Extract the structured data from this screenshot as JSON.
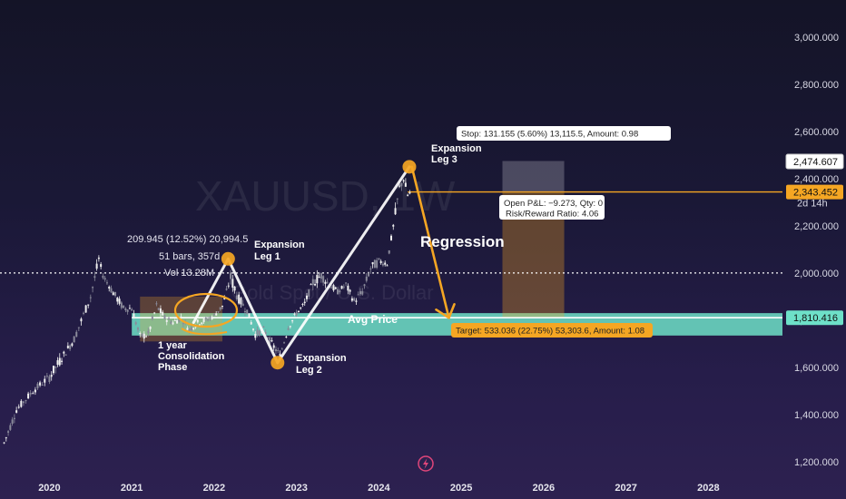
{
  "chart_data": {
    "type": "candlestick",
    "symbol_watermark": "XAUUSD, 1W",
    "watermark_sub": "Gold Spot / U.S. Dollar",
    "y_axis": {
      "ticks": [
        1200,
        1400,
        1600,
        1800,
        2000,
        2200,
        2400,
        2600,
        2800,
        3000
      ],
      "tick_labels": [
        "1,200.000",
        "1,400.000",
        "1,600.000",
        "1,800.000",
        "2,000.000",
        "2,200.000",
        "2,400.000",
        "2,600.000",
        "2,800.000",
        "3,000.000"
      ],
      "ylim": [
        1150,
        3080
      ]
    },
    "x_axis": {
      "years": [
        "2020",
        "2021",
        "2022",
        "2023",
        "2024",
        "2025",
        "2026",
        "2027",
        "2028"
      ],
      "xlim": [
        2019.4,
        2028.9
      ]
    },
    "price_tags": [
      {
        "label": "2,474.607",
        "value": 2474.607,
        "style": "white"
      },
      {
        "label": "2,343.452",
        "value": 2343.452,
        "style": "orange"
      },
      {
        "label": "2d 14h",
        "style": "countdown"
      },
      {
        "label": "1,810.416",
        "value": 1810.416,
        "style": "teal"
      }
    ],
    "horizontal_lines": [
      {
        "name": "2000 level",
        "value": 2000,
        "style": "dotted-white"
      },
      {
        "name": "current price",
        "value": 2343.452,
        "style": "orange"
      }
    ],
    "zones": [
      {
        "name": "support zone",
        "from": 1735,
        "to": 1830,
        "color": "#6ee0c8"
      }
    ],
    "price_series": {
      "x": [
        2019.45,
        2019.6,
        2019.8,
        2020.0,
        2020.15,
        2020.3,
        2020.5,
        2020.6,
        2020.65,
        2020.75,
        2020.9,
        2021.0,
        2021.1,
        2021.2,
        2021.3,
        2021.4,
        2021.5,
        2021.6,
        2021.7,
        2021.8,
        2021.9,
        2022.0,
        2022.1,
        2022.2,
        2022.3,
        2022.4,
        2022.5,
        2022.6,
        2022.7,
        2022.8,
        2022.9,
        2023.0,
        2023.1,
        2023.2,
        2023.3,
        2023.4,
        2023.5,
        2023.6,
        2023.7,
        2023.8,
        2023.9,
        2024.0,
        2024.1,
        2024.2,
        2024.25,
        2024.3,
        2024.35,
        2024.4
      ],
      "values": [
        1280,
        1420,
        1500,
        1560,
        1640,
        1720,
        1900,
        2060,
        1990,
        1930,
        1850,
        1850,
        1730,
        1740,
        1860,
        1810,
        1790,
        1810,
        1760,
        1790,
        1800,
        1820,
        1860,
        1980,
        1890,
        1840,
        1740,
        1760,
        1700,
        1650,
        1770,
        1830,
        1870,
        1960,
        1990,
        1950,
        1920,
        1950,
        1880,
        1920,
        2020,
        2050,
        2040,
        2250,
        2360,
        2400,
        2330,
        2345
      ],
      "ranges": [
        [
          1230,
          1330
        ],
        [
          1380,
          1470
        ],
        [
          1460,
          1550
        ],
        [
          1480,
          1610
        ],
        [
          1600,
          1700
        ],
        [
          1680,
          1790
        ],
        [
          1860,
          1980
        ],
        [
          2000,
          2075
        ],
        [
          1960,
          2030
        ],
        [
          1880,
          1980
        ],
        [
          1800,
          1890
        ],
        [
          1800,
          1900
        ],
        [
          1690,
          1790
        ],
        [
          1700,
          1800
        ],
        [
          1820,
          1920
        ],
        [
          1770,
          1850
        ],
        [
          1750,
          1830
        ],
        [
          1770,
          1850
        ],
        [
          1720,
          1800
        ],
        [
          1750,
          1830
        ],
        [
          1760,
          1840
        ],
        [
          1790,
          1860
        ],
        [
          1820,
          1900
        ],
        [
          1900,
          2070
        ],
        [
          1850,
          1960
        ],
        [
          1800,
          1880
        ],
        [
          1690,
          1780
        ],
        [
          1720,
          1800
        ],
        [
          1640,
          1730
        ],
        [
          1620,
          1700
        ],
        [
          1720,
          1800
        ],
        [
          1800,
          1870
        ],
        [
          1810,
          1900
        ],
        [
          1900,
          2040
        ],
        [
          1940,
          2060
        ],
        [
          1910,
          2000
        ],
        [
          1890,
          1960
        ],
        [
          1900,
          1990
        ],
        [
          1820,
          1920
        ],
        [
          1880,
          1980
        ],
        [
          1980,
          2100
        ],
        [
          2000,
          2080
        ],
        [
          2000,
          2080
        ],
        [
          2150,
          2300
        ],
        [
          2300,
          2430
        ],
        [
          2330,
          2450
        ],
        [
          2300,
          2400
        ],
        [
          2310,
          2380
        ]
      ]
    },
    "pattern_points": [
      {
        "name": "start",
        "x": 2021.75,
        "value": 1790
      },
      {
        "name": "Expansion Leg 1",
        "x": 2022.17,
        "value": 2060
      },
      {
        "name": "Expansion Leg 2",
        "x": 2022.77,
        "value": 1620
      },
      {
        "name": "Expansion Leg 3",
        "x": 2024.37,
        "value": 2450
      }
    ],
    "regression_arrow": [
      {
        "x": 2024.4,
        "value": 2450
      },
      {
        "x": 2024.85,
        "value": 1810
      }
    ],
    "position": {
      "entry": 2343.452,
      "stop": 2474.607,
      "target": 1810.416,
      "x_from": 2025.5,
      "x_to": 2026.25,
      "stop_label": "Stop: 131.155 (5.60%) 13,115.5, Amount: 0.98",
      "target_label": "Target: 533.036 (22.75%) 53,303.6, Amount: 1.08",
      "pnl_line1": "Open P&L: −9.273, Qty: 0",
      "pnl_line2": "Risk/Reward Ratio: 4.06"
    },
    "annotations": {
      "measure_line1": "209.945 (12.52%) 20,994.5",
      "measure_line2": "51 bars, 357d",
      "measure_line3": "Vol 13.28M",
      "leg1_line1": "Expansion",
      "leg1_line2": "Leg 1",
      "leg2_line1": "Expansion",
      "leg2_line2": "Leg 2",
      "leg3_line1": "Expansion",
      "leg3_line2": "Leg 3",
      "consolidation_line1": "1 year",
      "consolidation_line2": "Consolidation",
      "consolidation_line3": "Phase",
      "regression": "Regression",
      "avg_price": "Avg Price"
    },
    "colors": {
      "orange": "#f5a623",
      "teal": "#6ee0c8",
      "white": "#ffffff",
      "candle_up": "#f0f0f0",
      "candle_down": "#8a8a9a"
    }
  },
  "icons": {
    "bottom_center": "lightning-bolt-icon"
  }
}
